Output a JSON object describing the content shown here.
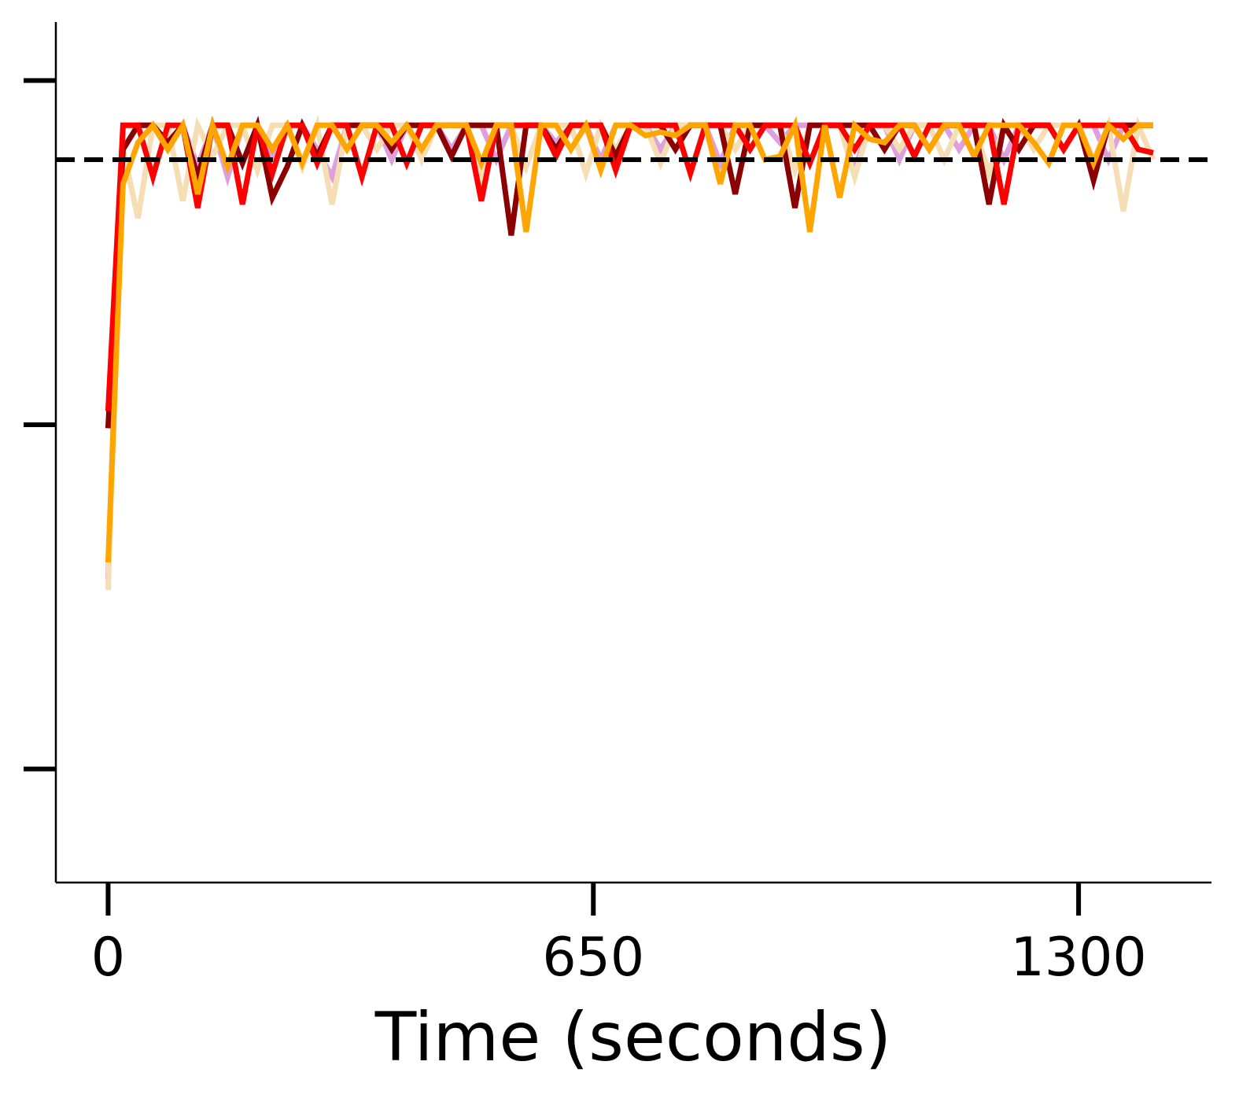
{
  "chart_data": {
    "type": "line",
    "xlabel": "Time (seconds)",
    "x": [
      0,
      20,
      40,
      60,
      80,
      100,
      120,
      140,
      160,
      180,
      200,
      220,
      240,
      260,
      280,
      300,
      320,
      340,
      360,
      380,
      400,
      420,
      440,
      460,
      480,
      500,
      520,
      540,
      560,
      580,
      600,
      620,
      640,
      660,
      680,
      700,
      720,
      740,
      760,
      780,
      800,
      820,
      840,
      860,
      880,
      900,
      920,
      940,
      960,
      980,
      1000,
      1020,
      1040,
      1060,
      1080,
      1100,
      1120,
      1140,
      1160,
      1180,
      1200,
      1220,
      1240,
      1260,
      1280,
      1300,
      1320,
      1340,
      1360,
      1380,
      1400
    ],
    "series": [
      {
        "color": "#dda0dd",
        "values": [
          0.55,
          1.87,
          1.87,
          1.87,
          1.8,
          1.87,
          1.75,
          1.87,
          1.72,
          1.87,
          1.87,
          1.78,
          1.87,
          1.87,
          1.8,
          1.72,
          1.87,
          1.87,
          1.87,
          1.77,
          1.87,
          1.87,
          1.87,
          1.8,
          1.87,
          1.87,
          1.77,
          1.87,
          1.87,
          1.87,
          1.82,
          1.87,
          1.87,
          1.77,
          1.87,
          1.87,
          1.87,
          1.8,
          1.87,
          1.87,
          1.87,
          1.76,
          1.87,
          1.87,
          1.87,
          1.82,
          1.87,
          1.87,
          1.87,
          1.87,
          1.74,
          1.87,
          1.87,
          1.77,
          1.87,
          1.87,
          1.87,
          1.8,
          1.87,
          1.87,
          1.77,
          1.87,
          1.87,
          1.87,
          1.8,
          1.87,
          1.87,
          1.77,
          1.87,
          1.87,
          1.87
        ]
      },
      {
        "color": "#f5deb3",
        "values": [
          0.52,
          1.8,
          1.6,
          1.87,
          1.87,
          1.65,
          1.87,
          1.78,
          1.87,
          1.87,
          1.74,
          1.87,
          1.87,
          1.75,
          1.87,
          1.64,
          1.87,
          1.87,
          1.8,
          1.87,
          1.87,
          1.77,
          1.87,
          1.87,
          1.87,
          1.72,
          1.87,
          1.87,
          1.75,
          1.87,
          1.87,
          1.87,
          1.73,
          1.87,
          1.8,
          1.87,
          1.87,
          1.76,
          1.87,
          1.87,
          1.87,
          1.87,
          1.8,
          1.87,
          1.87,
          1.87,
          1.74,
          1.87,
          1.87,
          1.87,
          1.72,
          1.87,
          1.87,
          1.8,
          1.87,
          1.87,
          1.77,
          1.87,
          1.87,
          1.73,
          1.87,
          1.87,
          1.8,
          1.87,
          1.87,
          1.87,
          1.77,
          1.87,
          1.62,
          1.87,
          1.77
        ]
      },
      {
        "color": "#8b0000",
        "values": [
          0.99,
          1.8,
          1.87,
          1.87,
          1.82,
          1.87,
          1.72,
          1.87,
          1.87,
          1.76,
          1.87,
          1.66,
          1.75,
          1.87,
          1.78,
          1.87,
          1.87,
          1.87,
          1.87,
          1.8,
          1.87,
          1.87,
          1.87,
          1.78,
          1.87,
          1.87,
          1.87,
          1.55,
          1.87,
          1.87,
          1.8,
          1.87,
          1.87,
          1.87,
          1.78,
          1.87,
          1.87,
          1.87,
          1.8,
          1.87,
          1.87,
          1.87,
          1.67,
          1.87,
          1.87,
          1.87,
          1.63,
          1.87,
          1.87,
          1.87,
          1.87,
          1.87,
          1.8,
          1.87,
          1.87,
          1.8,
          1.87,
          1.87,
          1.87,
          1.64,
          1.87,
          1.8,
          1.87,
          1.87,
          1.8,
          1.87,
          1.71,
          1.87,
          1.87,
          1.87,
          1.87
        ]
      },
      {
        "color": "#ff0000",
        "values": [
          1.04,
          1.87,
          1.87,
          1.72,
          1.87,
          1.87,
          1.63,
          1.87,
          1.87,
          1.64,
          1.87,
          1.73,
          1.87,
          1.87,
          1.76,
          1.87,
          1.87,
          1.72,
          1.87,
          1.87,
          1.76,
          1.87,
          1.87,
          1.87,
          1.87,
          1.65,
          1.87,
          1.87,
          1.87,
          1.87,
          1.78,
          1.87,
          1.87,
          1.87,
          1.74,
          1.87,
          1.87,
          1.87,
          1.87,
          1.73,
          1.87,
          1.87,
          1.87,
          1.8,
          1.87,
          1.87,
          1.87,
          1.76,
          1.87,
          1.87,
          1.8,
          1.87,
          1.87,
          1.87,
          1.78,
          1.87,
          1.87,
          1.87,
          1.87,
          1.87,
          1.64,
          1.87,
          1.87,
          1.87,
          1.8,
          1.87,
          1.87,
          1.87,
          1.87,
          1.8,
          1.79
        ]
      },
      {
        "color": "#ffa500",
        "values": [
          0.6,
          1.7,
          1.82,
          1.87,
          1.8,
          1.87,
          1.67,
          1.87,
          1.75,
          1.87,
          1.87,
          1.8,
          1.87,
          1.76,
          1.87,
          1.87,
          1.8,
          1.87,
          1.87,
          1.82,
          1.87,
          1.8,
          1.87,
          1.87,
          1.87,
          1.76,
          1.87,
          1.87,
          1.56,
          1.87,
          1.87,
          1.8,
          1.87,
          1.74,
          1.87,
          1.87,
          1.84,
          1.85,
          1.84,
          1.87,
          1.87,
          1.7,
          1.87,
          1.87,
          1.77,
          1.78,
          1.87,
          1.56,
          1.87,
          1.66,
          1.87,
          1.83,
          1.82,
          1.87,
          1.87,
          1.8,
          1.87,
          1.87,
          1.78,
          1.87,
          1.87,
          1.87,
          1.82,
          1.76,
          1.87,
          1.87,
          1.76,
          1.87,
          1.83,
          1.87,
          1.87
        ]
      }
    ],
    "hline": 1.77,
    "xlim": [
      -70,
      1478
    ],
    "xticks": [
      0,
      650,
      1300
    ],
    "ylim": [
      -0.33,
      2.17
    ],
    "yticks": [
      0,
      1,
      2
    ]
  }
}
